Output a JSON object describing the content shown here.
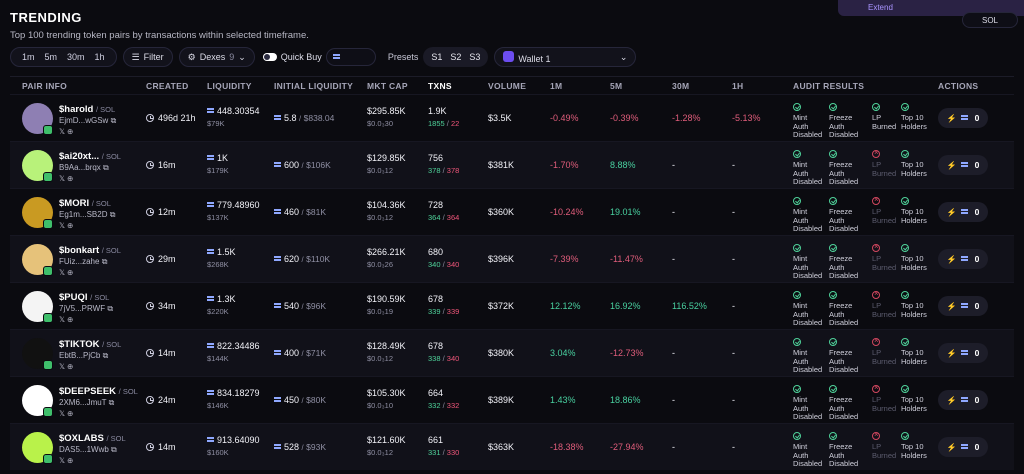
{
  "header": {
    "title": "TRENDING",
    "subtitle": "Top 100 trending token pairs by transactions within selected timeframe.",
    "extend_label": "Extend",
    "currency": "SOL"
  },
  "toolbar": {
    "timeframes": [
      "1m",
      "5m",
      "30m",
      "1h"
    ],
    "filter_label": "Filter",
    "dexes_label": "Dexes",
    "dexes_count": "9",
    "quick_buy_label": "Quick Buy",
    "presets_label": "Presets",
    "presets": [
      "S1",
      "S2",
      "S3"
    ],
    "wallet_label": "Wallet 1"
  },
  "columns": {
    "pair_info": "PAIR INFO",
    "created": "CREATED",
    "liquidity": "LIQUIDITY",
    "initial_liquidity": "INITIAL LIQUIDITY",
    "mkt_cap": "MKT CAP",
    "txns": "TXNS",
    "volume": "VOLUME",
    "m1": "1M",
    "m5": "5M",
    "m30": "30M",
    "h1": "1H",
    "audit": "AUDIT RESULTS",
    "actions": "ACTIONS"
  },
  "audit_labels": {
    "mint": "Mint Auth Disabled",
    "freeze": "Freeze Auth Disabled",
    "lp": "LP Burned",
    "top10": "Top 10 Holders"
  },
  "rows": [
    {
      "name": "$harold",
      "pair": "/ SOL",
      "addr": "EjmD...wGSw",
      "created": "496d 21h",
      "liq": "448.30354",
      "liq_usd": "$79K",
      "init_sol": "5.8",
      "init_usd": "$838.04",
      "mcap": "$295.85K",
      "mcap_sub": "$0.0₃30",
      "txns": "1.9K",
      "buys": "1855",
      "sells": "22",
      "volume": "$3.5K",
      "m1": "-0.49%",
      "m5": "-0.39%",
      "m30": "-1.28%",
      "h1": "-5.13%",
      "lp_ok": true,
      "buy": "0",
      "avatar_color": "#8e7fb3"
    },
    {
      "name": "$ai20xt...",
      "pair": "/ SOL",
      "addr": "B9Aa...brqx",
      "created": "16m",
      "liq": "1K",
      "liq_usd": "$179K",
      "init_sol": "600",
      "init_usd": "$106K",
      "mcap": "$129.85K",
      "mcap_sub": "$0.0₃12",
      "txns": "756",
      "buys": "378",
      "sells": "378",
      "volume": "$381K",
      "m1": "-1.70%",
      "m5": "8.88%",
      "m30": "-",
      "h1": "-",
      "lp_ok": false,
      "buy": "0",
      "avatar_color": "#b8f27a"
    },
    {
      "name": "$MORI",
      "pair": "/ SOL",
      "addr": "Eg1m...SB2D",
      "created": "12m",
      "liq": "779.48960",
      "liq_usd": "$137K",
      "init_sol": "460",
      "init_usd": "$81K",
      "mcap": "$104.36K",
      "mcap_sub": "$0.0₃12",
      "txns": "728",
      "buys": "364",
      "sells": "364",
      "volume": "$360K",
      "m1": "-10.24%",
      "m5": "19.01%",
      "m30": "-",
      "h1": "-",
      "lp_ok": false,
      "buy": "0",
      "avatar_color": "#c99a22"
    },
    {
      "name": "$bonkart",
      "pair": "/ SOL",
      "addr": "FUiz...zahe",
      "created": "29m",
      "liq": "1.5K",
      "liq_usd": "$268K",
      "init_sol": "620",
      "init_usd": "$110K",
      "mcap": "$266.21K",
      "mcap_sub": "$0.0₃26",
      "txns": "680",
      "buys": "340",
      "sells": "340",
      "volume": "$396K",
      "m1": "-7.39%",
      "m5": "-11.47%",
      "m30": "-",
      "h1": "-",
      "lp_ok": false,
      "buy": "0",
      "avatar_color": "#e6c27a"
    },
    {
      "name": "$PUQI",
      "pair": "/ SOL",
      "addr": "7jV5...PRWF",
      "created": "34m",
      "liq": "1.3K",
      "liq_usd": "$220K",
      "init_sol": "540",
      "init_usd": "$96K",
      "mcap": "$190.59K",
      "mcap_sub": "$0.0₃19",
      "txns": "678",
      "buys": "339",
      "sells": "339",
      "volume": "$372K",
      "m1": "12.12%",
      "m5": "16.92%",
      "m30": "116.52%",
      "h1": "-",
      "lp_ok": false,
      "buy": "0",
      "avatar_color": "#f4f4f4"
    },
    {
      "name": "$TIKTOK",
      "pair": "/ SOL",
      "addr": "EbtB...PjCb",
      "created": "14m",
      "liq": "822.34486",
      "liq_usd": "$144K",
      "init_sol": "400",
      "init_usd": "$71K",
      "mcap": "$128.49K",
      "mcap_sub": "$0.0₃12",
      "txns": "678",
      "buys": "338",
      "sells": "340",
      "volume": "$380K",
      "m1": "3.04%",
      "m5": "-12.73%",
      "m30": "-",
      "h1": "-",
      "lp_ok": false,
      "buy": "0",
      "avatar_color": "#111111"
    },
    {
      "name": "$DEEPSEEK",
      "pair": "/ SOL",
      "addr": "2XM6...JmuT",
      "created": "24m",
      "liq": "834.18279",
      "liq_usd": "$146K",
      "init_sol": "450",
      "init_usd": "$80K",
      "mcap": "$105.30K",
      "mcap_sub": "$0.0₃10",
      "txns": "664",
      "buys": "332",
      "sells": "332",
      "volume": "$389K",
      "m1": "1.43%",
      "m5": "18.86%",
      "m30": "-",
      "h1": "-",
      "lp_ok": false,
      "buy": "0",
      "avatar_color": "#ffffff"
    },
    {
      "name": "$OXLABS",
      "pair": "/ SOL",
      "addr": "DAS5...1Wwb",
      "created": "14m",
      "liq": "913.64090",
      "liq_usd": "$160K",
      "init_sol": "528",
      "init_usd": "$93K",
      "mcap": "$121.60K",
      "mcap_sub": "$0.0₃12",
      "txns": "661",
      "buys": "331",
      "sells": "330",
      "volume": "$363K",
      "m1": "-18.38%",
      "m5": "-27.94%",
      "m30": "-",
      "h1": "-",
      "lp_ok": false,
      "buy": "0",
      "avatar_color": "#b9f24a"
    }
  ]
}
